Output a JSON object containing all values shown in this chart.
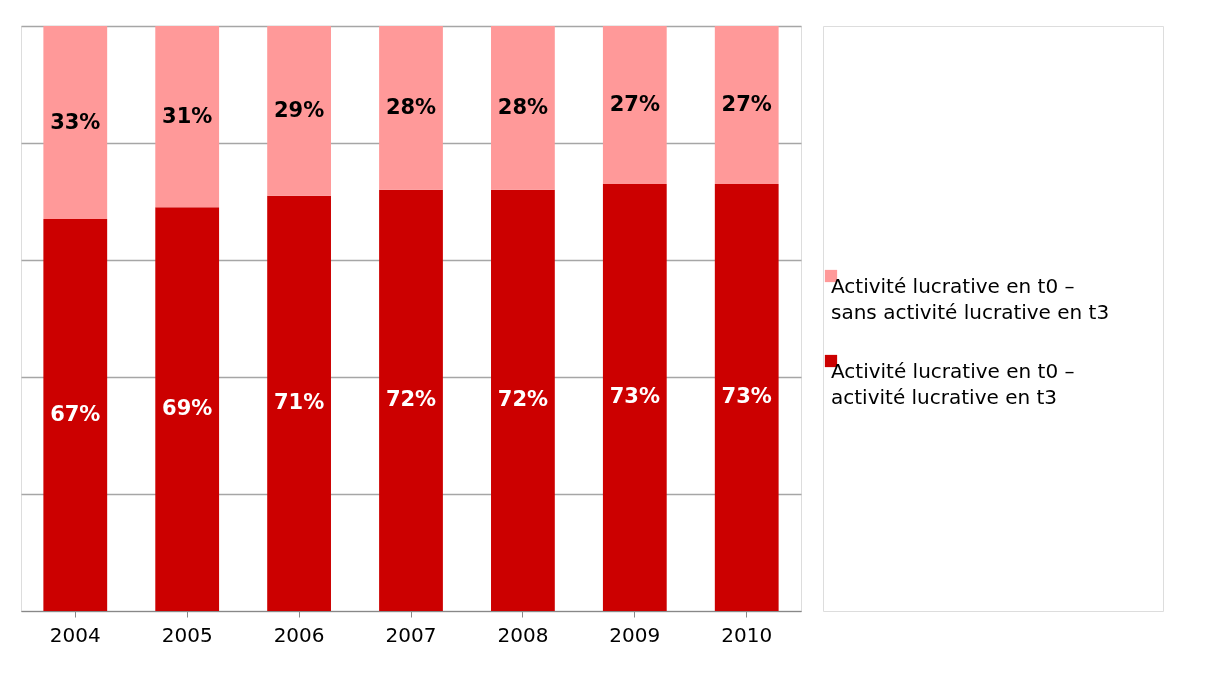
{
  "chart_data": {
    "type": "bar",
    "stacked": true,
    "categories": [
      "2004",
      "2005",
      "2006",
      "2007",
      "2008",
      "2009",
      "2010"
    ],
    "series": [
      {
        "name": "Activité lucrative en t0 – activité lucrative en t3",
        "color": "#cc0000",
        "values": [
          67,
          69,
          71,
          72,
          72,
          73,
          73
        ],
        "value_labels": [
          "67%",
          "69%",
          "71%",
          "72%",
          "72%",
          "73%",
          "73%"
        ]
      },
      {
        "name": "Activité lucrative en t0 – sans activité lucrative en t3",
        "color": "#ff9999",
        "values": [
          33,
          31,
          29,
          28,
          28,
          27,
          27
        ],
        "value_labels": [
          "33%",
          "31%",
          "29%",
          "28%",
          "28%",
          "27%",
          "27%"
        ]
      }
    ],
    "ylim": [
      0,
      100
    ],
    "yticks": [
      {
        "value": 0,
        "label": null
      },
      {
        "value": 20,
        "label": null
      },
      {
        "value": 40,
        "label": null
      },
      {
        "value": 60,
        "label": null
      },
      {
        "value": 80,
        "label": null
      },
      {
        "value": 100,
        "label": null
      }
    ],
    "grid": "y",
    "tick_labels": "x",
    "legend": "right"
  }
}
